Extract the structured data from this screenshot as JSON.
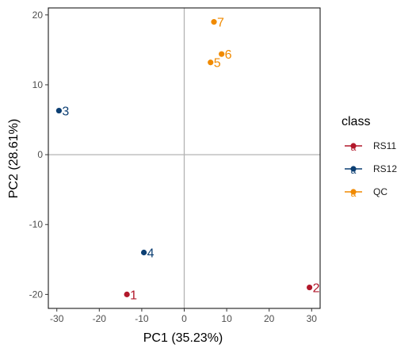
{
  "chart_data": {
    "type": "scatter",
    "xlabel": "PC1 (35.23%)",
    "ylabel": "PC2 (28.61%)",
    "xlim": [
      -32,
      32
    ],
    "ylim": [
      -22,
      21
    ],
    "xticks": [
      -30,
      -20,
      -10,
      0,
      10,
      20,
      30
    ],
    "yticks": [
      -20,
      -10,
      0,
      10,
      20
    ],
    "xtick_labels": [
      "-30",
      "-20",
      "-10",
      "0",
      "10",
      "20",
      "30"
    ],
    "ytick_labels": [
      "-20",
      "-10",
      "0",
      "10",
      "20"
    ],
    "reference_lines": {
      "x": 0,
      "y": 0
    },
    "grid": false,
    "legend": {
      "title": "class",
      "placement": "right",
      "key_glyph": "a"
    },
    "series": [
      {
        "name": "RS11",
        "color": "#b2182b",
        "points": [
          {
            "label": "1",
            "x": -13.5,
            "y": -20.0
          },
          {
            "label": "2",
            "x": 29.5,
            "y": -19.0
          }
        ]
      },
      {
        "name": "RS12",
        "color": "#0c3f73",
        "points": [
          {
            "label": "3",
            "x": -29.5,
            "y": 6.3
          },
          {
            "label": "4",
            "x": -9.5,
            "y": -14.0
          }
        ]
      },
      {
        "name": "QC",
        "color": "#f08a00",
        "points": [
          {
            "label": "5",
            "x": 6.2,
            "y": 13.2
          },
          {
            "label": "6",
            "x": 8.8,
            "y": 14.4
          },
          {
            "label": "7",
            "x": 7.0,
            "y": 19.0
          }
        ]
      }
    ]
  }
}
